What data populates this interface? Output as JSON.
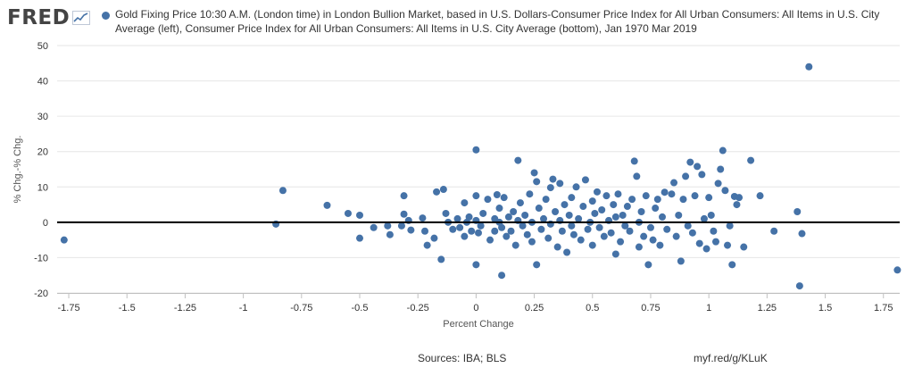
{
  "brand": {
    "logo_text": "FRED"
  },
  "chart_data": {
    "type": "scatter",
    "series_name": "Gold Fixing Price 10:30 A.M. (London time) in London Bullion Market, based in U.S. Dollars-Consumer Price Index for All Urban Consumers: All Items in U.S. City Average (left), Consumer Price Index for All Urban Consumers: All Items in U.S. City Average (bottom), Jan 1970 Mar 2019",
    "xlabel": "Percent Change",
    "ylabel": "% Chg.-% Chg.",
    "xlim": [
      -1.8,
      1.82
    ],
    "ylim": [
      -20,
      50
    ],
    "xticks": [
      -1.75,
      -1.5,
      -1.25,
      -1,
      -0.75,
      -0.5,
      -0.25,
      0,
      0.25,
      0.5,
      0.75,
      1,
      1.25,
      1.5,
      1.75
    ],
    "xtick_labels": [
      "-1.75",
      "-1.5",
      "-1.25",
      "-1",
      "-0.75",
      "-0.5",
      "-0.25",
      "0",
      "0.25",
      "0.5",
      "0.75",
      "1",
      "1.25",
      "1.5",
      "1.75"
    ],
    "yticks": [
      -20,
      -10,
      0,
      10,
      20,
      30,
      40,
      50
    ],
    "ytick_labels": [
      "-20",
      "-10",
      "0",
      "10",
      "20",
      "30",
      "40",
      "50"
    ],
    "zero_line": true,
    "grid": "horizontal",
    "color": "#4572a7",
    "points": [
      [
        -1.77,
        -5
      ],
      [
        -0.86,
        -0.5
      ],
      [
        -0.83,
        9
      ],
      [
        -0.64,
        4.8
      ],
      [
        -0.55,
        2.5
      ],
      [
        -0.5,
        2
      ],
      [
        -0.5,
        -4.5
      ],
      [
        -0.44,
        -1.5
      ],
      [
        -0.38,
        -1
      ],
      [
        -0.37,
        -3.5
      ],
      [
        -0.32,
        -1
      ],
      [
        -0.31,
        7.5
      ],
      [
        -0.31,
        2.3
      ],
      [
        -0.29,
        0.5
      ],
      [
        -0.28,
        -2.2
      ],
      [
        -0.23,
        1.2
      ],
      [
        -0.22,
        -2.5
      ],
      [
        -0.21,
        -6.5
      ],
      [
        -0.18,
        -4.5
      ],
      [
        -0.17,
        8.6
      ],
      [
        -0.15,
        -10.5
      ],
      [
        -0.14,
        9.3
      ],
      [
        -0.13,
        2.5
      ],
      [
        -0.12,
        0
      ],
      [
        -0.1,
        -2
      ],
      [
        -0.08,
        1
      ],
      [
        -0.07,
        -1.5
      ],
      [
        -0.05,
        5.5
      ],
      [
        -0.05,
        -4
      ],
      [
        -0.04,
        0
      ],
      [
        -0.03,
        1.5
      ],
      [
        -0.02,
        -2.5
      ],
      [
        0,
        20.5
      ],
      [
        0,
        -12
      ],
      [
        0,
        7.5
      ],
      [
        0,
        0.5
      ],
      [
        0.01,
        -3
      ],
      [
        0.02,
        -1
      ],
      [
        0.03,
        2.5
      ],
      [
        0.05,
        6.5
      ],
      [
        0.06,
        -5
      ],
      [
        0.08,
        1
      ],
      [
        0.08,
        -2.5
      ],
      [
        0.09,
        7.8
      ],
      [
        0.1,
        0
      ],
      [
        0.1,
        4
      ],
      [
        0.11,
        -1.5
      ],
      [
        0.11,
        -15
      ],
      [
        0.12,
        7
      ],
      [
        0.13,
        -4
      ],
      [
        0.14,
        1.5
      ],
      [
        0.15,
        -2.5
      ],
      [
        0.16,
        3
      ],
      [
        0.17,
        -6.5
      ],
      [
        0.18,
        0.5
      ],
      [
        0.18,
        17.5
      ],
      [
        0.19,
        5.5
      ],
      [
        0.2,
        -1
      ],
      [
        0.21,
        2
      ],
      [
        0.22,
        -3.5
      ],
      [
        0.23,
        8
      ],
      [
        0.24,
        0
      ],
      [
        0.24,
        -5.5
      ],
      [
        0.25,
        14
      ],
      [
        0.26,
        -12
      ],
      [
        0.26,
        11.5
      ],
      [
        0.27,
        4
      ],
      [
        0.28,
        -2
      ],
      [
        0.29,
        1
      ],
      [
        0.3,
        6.5
      ],
      [
        0.31,
        -4.5
      ],
      [
        0.32,
        9.8
      ],
      [
        0.32,
        -0.5
      ],
      [
        0.33,
        12.2
      ],
      [
        0.34,
        3
      ],
      [
        0.35,
        -7
      ],
      [
        0.36,
        0.5
      ],
      [
        0.36,
        11
      ],
      [
        0.37,
        -2.5
      ],
      [
        0.38,
        5
      ],
      [
        0.39,
        -8.5
      ],
      [
        0.4,
        2
      ],
      [
        0.41,
        -1
      ],
      [
        0.41,
        7
      ],
      [
        0.42,
        -3.5
      ],
      [
        0.43,
        10
      ],
      [
        0.44,
        1
      ],
      [
        0.45,
        -5
      ],
      [
        0.46,
        4.5
      ],
      [
        0.47,
        12
      ],
      [
        0.48,
        -2
      ],
      [
        0.49,
        0
      ],
      [
        0.5,
        6
      ],
      [
        0.5,
        -6.5
      ],
      [
        0.51,
        2.5
      ],
      [
        0.52,
        8.6
      ],
      [
        0.53,
        -1.5
      ],
      [
        0.54,
        3.5
      ],
      [
        0.55,
        -4
      ],
      [
        0.56,
        7.5
      ],
      [
        0.57,
        0.5
      ],
      [
        0.58,
        -3
      ],
      [
        0.59,
        5
      ],
      [
        0.6,
        -9
      ],
      [
        0.6,
        1.5
      ],
      [
        0.61,
        8
      ],
      [
        0.62,
        -5.5
      ],
      [
        0.63,
        2
      ],
      [
        0.64,
        -1
      ],
      [
        0.65,
        4.5
      ],
      [
        0.66,
        -2.5
      ],
      [
        0.67,
        6.5
      ],
      [
        0.68,
        17.3
      ],
      [
        0.69,
        13
      ],
      [
        0.7,
        -7
      ],
      [
        0.7,
        0
      ],
      [
        0.71,
        3
      ],
      [
        0.72,
        -4
      ],
      [
        0.73,
        7.5
      ],
      [
        0.74,
        -12
      ],
      [
        0.75,
        -1.5
      ],
      [
        0.76,
        -5
      ],
      [
        0.77,
        4
      ],
      [
        0.78,
        6.5
      ],
      [
        0.79,
        -6.5
      ],
      [
        0.8,
        1.5
      ],
      [
        0.81,
        8.5
      ],
      [
        0.82,
        -2
      ],
      [
        0.84,
        8
      ],
      [
        0.85,
        11.2
      ],
      [
        0.86,
        -4
      ],
      [
        0.87,
        2
      ],
      [
        0.88,
        -11
      ],
      [
        0.89,
        6.5
      ],
      [
        0.9,
        13
      ],
      [
        0.91,
        -1
      ],
      [
        0.92,
        17
      ],
      [
        0.93,
        -3
      ],
      [
        0.94,
        7.5
      ],
      [
        0.95,
        15.8
      ],
      [
        0.96,
        -6
      ],
      [
        0.97,
        13.5
      ],
      [
        0.98,
        1
      ],
      [
        0.99,
        -7.5
      ],
      [
        1,
        7
      ],
      [
        1.01,
        2
      ],
      [
        1.02,
        -2.5
      ],
      [
        1.03,
        -5.5
      ],
      [
        1.04,
        11
      ],
      [
        1.05,
        15
      ],
      [
        1.06,
        20.3
      ],
      [
        1.07,
        9
      ],
      [
        1.08,
        -6.5
      ],
      [
        1.09,
        -1
      ],
      [
        1.1,
        -12
      ],
      [
        1.11,
        7.3
      ],
      [
        1.12,
        5
      ],
      [
        1.13,
        7
      ],
      [
        1.15,
        -7
      ],
      [
        1.18,
        17.5
      ],
      [
        1.22,
        7.5
      ],
      [
        1.28,
        -2.5
      ],
      [
        1.38,
        3
      ],
      [
        1.39,
        -18
      ],
      [
        1.4,
        -3.2
      ],
      [
        1.43,
        44
      ],
      [
        1.81,
        -13.5
      ]
    ]
  },
  "footer": {
    "sources": "Sources: IBA; BLS",
    "url": "myf.red/g/KLuK"
  }
}
